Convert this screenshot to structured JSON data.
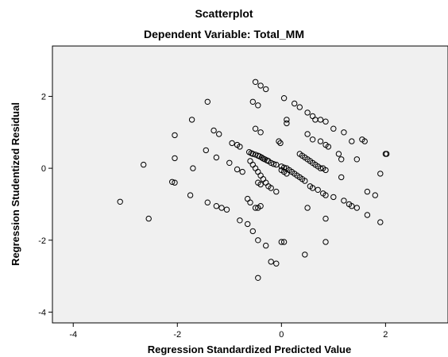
{
  "chart_data": {
    "type": "scatter",
    "title": "Scatterplot",
    "subtitle": "Dependent Variable: Total_MM",
    "xlabel": "Regression Standardized Predicted Value",
    "ylabel": "Regression Studentized Residual",
    "xlim": [
      -4.4,
      3.2
    ],
    "ylim": [
      -4.3,
      3.4
    ],
    "xticks": [
      -4,
      -2,
      0,
      2
    ],
    "yticks": [
      -4,
      -2,
      0,
      2
    ],
    "grid": false,
    "series": [
      {
        "points": [
          [
            -3.1,
            -0.93
          ],
          [
            -2.55,
            -1.4
          ],
          [
            -2.65,
            0.1
          ],
          [
            -2.1,
            -0.38
          ],
          [
            -2.05,
            -0.4
          ],
          [
            -2.05,
            0.28
          ],
          [
            -2.05,
            0.92
          ],
          [
            -1.75,
            -0.75
          ],
          [
            -1.7,
            0.0
          ],
          [
            -1.72,
            1.35
          ],
          [
            -1.45,
            0.5
          ],
          [
            -1.42,
            1.85
          ],
          [
            -1.42,
            -0.95
          ],
          [
            -1.25,
            -1.05
          ],
          [
            -1.15,
            -1.1
          ],
          [
            -1.05,
            -1.15
          ],
          [
            -1.25,
            0.3
          ],
          [
            -1.3,
            1.05
          ],
          [
            -1.2,
            0.95
          ],
          [
            -1.0,
            0.15
          ],
          [
            -0.95,
            0.7
          ],
          [
            -0.85,
            0.65
          ],
          [
            -0.8,
            0.6
          ],
          [
            -0.85,
            -0.03
          ],
          [
            -0.75,
            -0.1
          ],
          [
            -0.8,
            -1.45
          ],
          [
            -0.65,
            -1.55
          ],
          [
            -0.55,
            -1.75
          ],
          [
            -0.45,
            -2.0
          ],
          [
            -0.3,
            -2.15
          ],
          [
            -0.65,
            -0.85
          ],
          [
            -0.6,
            -0.95
          ],
          [
            -0.5,
            -1.1
          ],
          [
            -0.45,
            -1.1
          ],
          [
            -0.4,
            -1.05
          ],
          [
            -0.62,
            0.45
          ],
          [
            -0.58,
            0.42
          ],
          [
            -0.55,
            0.4
          ],
          [
            -0.5,
            0.38
          ],
          [
            -0.45,
            0.35
          ],
          [
            -0.42,
            0.33
          ],
          [
            -0.38,
            0.3
          ],
          [
            -0.35,
            0.27
          ],
          [
            -0.32,
            0.25
          ],
          [
            -0.28,
            0.22
          ],
          [
            -0.25,
            0.2
          ],
          [
            -0.2,
            0.15
          ],
          [
            -0.15,
            0.12
          ],
          [
            -0.1,
            0.1
          ],
          [
            -0.6,
            0.2
          ],
          [
            -0.55,
            0.1
          ],
          [
            -0.5,
            0.0
          ],
          [
            -0.45,
            -0.1
          ],
          [
            -0.4,
            -0.2
          ],
          [
            -0.35,
            -0.3
          ],
          [
            -0.3,
            -0.4
          ],
          [
            -0.25,
            -0.5
          ],
          [
            -0.2,
            -0.55
          ],
          [
            -0.1,
            -0.65
          ],
          [
            -0.4,
            -0.45
          ],
          [
            -0.45,
            -0.4
          ],
          [
            -0.5,
            1.1
          ],
          [
            -0.4,
            1.0
          ],
          [
            -0.55,
            1.85
          ],
          [
            -0.45,
            1.75
          ],
          [
            -0.5,
            2.4
          ],
          [
            -0.4,
            2.3
          ],
          [
            -0.3,
            2.2
          ],
          [
            -0.2,
            -2.6
          ],
          [
            -0.1,
            -2.65
          ],
          [
            -0.45,
            -3.05
          ],
          [
            0.0,
            -2.05
          ],
          [
            0.05,
            -2.05
          ],
          [
            -0.05,
            0.75
          ],
          [
            -0.02,
            0.7
          ],
          [
            0.0,
            0.05
          ],
          [
            0.05,
            0.02
          ],
          [
            0.1,
            0.0
          ],
          [
            0.15,
            -0.05
          ],
          [
            0.2,
            -0.1
          ],
          [
            0.25,
            -0.15
          ],
          [
            0.3,
            -0.2
          ],
          [
            0.35,
            -0.25
          ],
          [
            0.4,
            -0.3
          ],
          [
            0.45,
            -0.35
          ],
          [
            0.0,
            -0.05
          ],
          [
            0.05,
            -0.1
          ],
          [
            0.1,
            -0.15
          ],
          [
            0.05,
            1.95
          ],
          [
            0.1,
            1.35
          ],
          [
            0.1,
            1.25
          ],
          [
            0.25,
            1.8
          ],
          [
            0.35,
            1.7
          ],
          [
            0.5,
            1.55
          ],
          [
            0.6,
            1.45
          ],
          [
            0.65,
            1.35
          ],
          [
            0.75,
            1.35
          ],
          [
            0.35,
            0.4
          ],
          [
            0.4,
            0.35
          ],
          [
            0.45,
            0.3
          ],
          [
            0.5,
            0.25
          ],
          [
            0.55,
            0.2
          ],
          [
            0.6,
            0.15
          ],
          [
            0.65,
            0.1
          ],
          [
            0.7,
            0.05
          ],
          [
            0.75,
            0.0
          ],
          [
            0.5,
            0.95
          ],
          [
            0.6,
            0.8
          ],
          [
            0.75,
            0.75
          ],
          [
            0.85,
            0.65
          ],
          [
            0.8,
            0.0
          ],
          [
            0.85,
            -0.05
          ],
          [
            0.55,
            -0.5
          ],
          [
            0.6,
            -0.55
          ],
          [
            0.7,
            -0.6
          ],
          [
            0.8,
            -0.7
          ],
          [
            0.85,
            -0.75
          ],
          [
            0.5,
            -1.1
          ],
          [
            0.85,
            -1.4
          ],
          [
            0.85,
            -2.05
          ],
          [
            0.45,
            -2.4
          ],
          [
            0.85,
            1.3
          ],
          [
            0.9,
            0.6
          ],
          [
            1.0,
            1.1
          ],
          [
            1.1,
            0.4
          ],
          [
            1.15,
            0.25
          ],
          [
            1.2,
            1.0
          ],
          [
            1.35,
            0.75
          ],
          [
            1.45,
            0.25
          ],
          [
            1.55,
            0.8
          ],
          [
            1.6,
            0.75
          ],
          [
            1.15,
            -0.25
          ],
          [
            1.0,
            -0.8
          ],
          [
            1.2,
            -0.9
          ],
          [
            1.3,
            -1.0
          ],
          [
            1.35,
            -1.05
          ],
          [
            1.45,
            -1.1
          ],
          [
            1.65,
            -0.65
          ],
          [
            1.8,
            -0.75
          ],
          [
            1.9,
            -0.15
          ],
          [
            2.0,
            0.4
          ],
          [
            2.02,
            0.4
          ],
          [
            1.65,
            -1.3
          ],
          [
            1.9,
            -1.5
          ]
        ]
      }
    ]
  }
}
